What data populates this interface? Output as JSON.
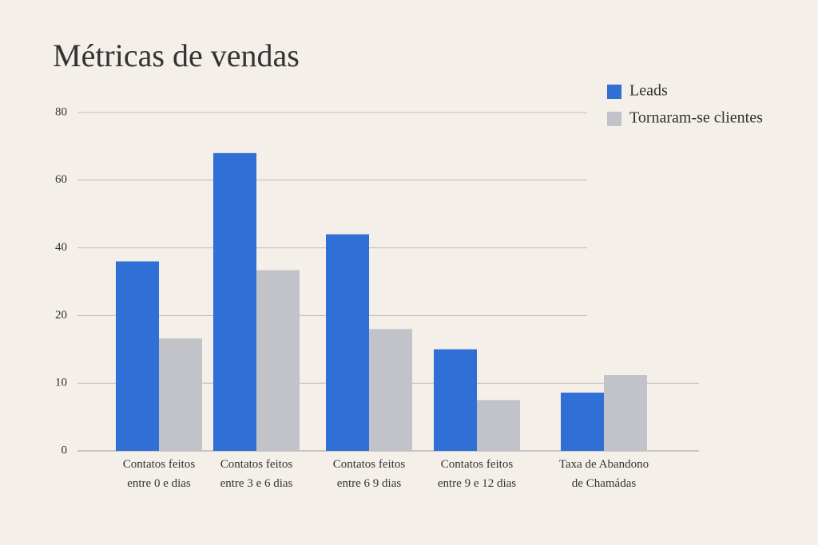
{
  "chart_data": {
    "type": "bar",
    "title": "Métricas de vendas",
    "categories": [
      "Contatos feitos\nentre 0 e dias",
      "Contatos feitos\nentre 3 e 6 dias",
      "Contatos feitos\nentre 6 9 dias",
      "Contatos feitos\nentre 9 e 12 dias",
      "Taxa de Abandono\nde Chamádas"
    ],
    "series": [
      {
        "name": "Leads",
        "color": "#2f6fd6",
        "values": [
          36,
          68,
          44,
          15,
          8.6
        ]
      },
      {
        "name": "Tornaram-se clientes",
        "color": "#c1c3c8",
        "values": [
          16.6,
          33.4,
          18,
          7.5,
          11.2
        ]
      }
    ],
    "ylim": [
      0,
      80
    ],
    "yticks": [
      0,
      10,
      20,
      40,
      60,
      80
    ],
    "grid": true,
    "legend": "top-right"
  }
}
